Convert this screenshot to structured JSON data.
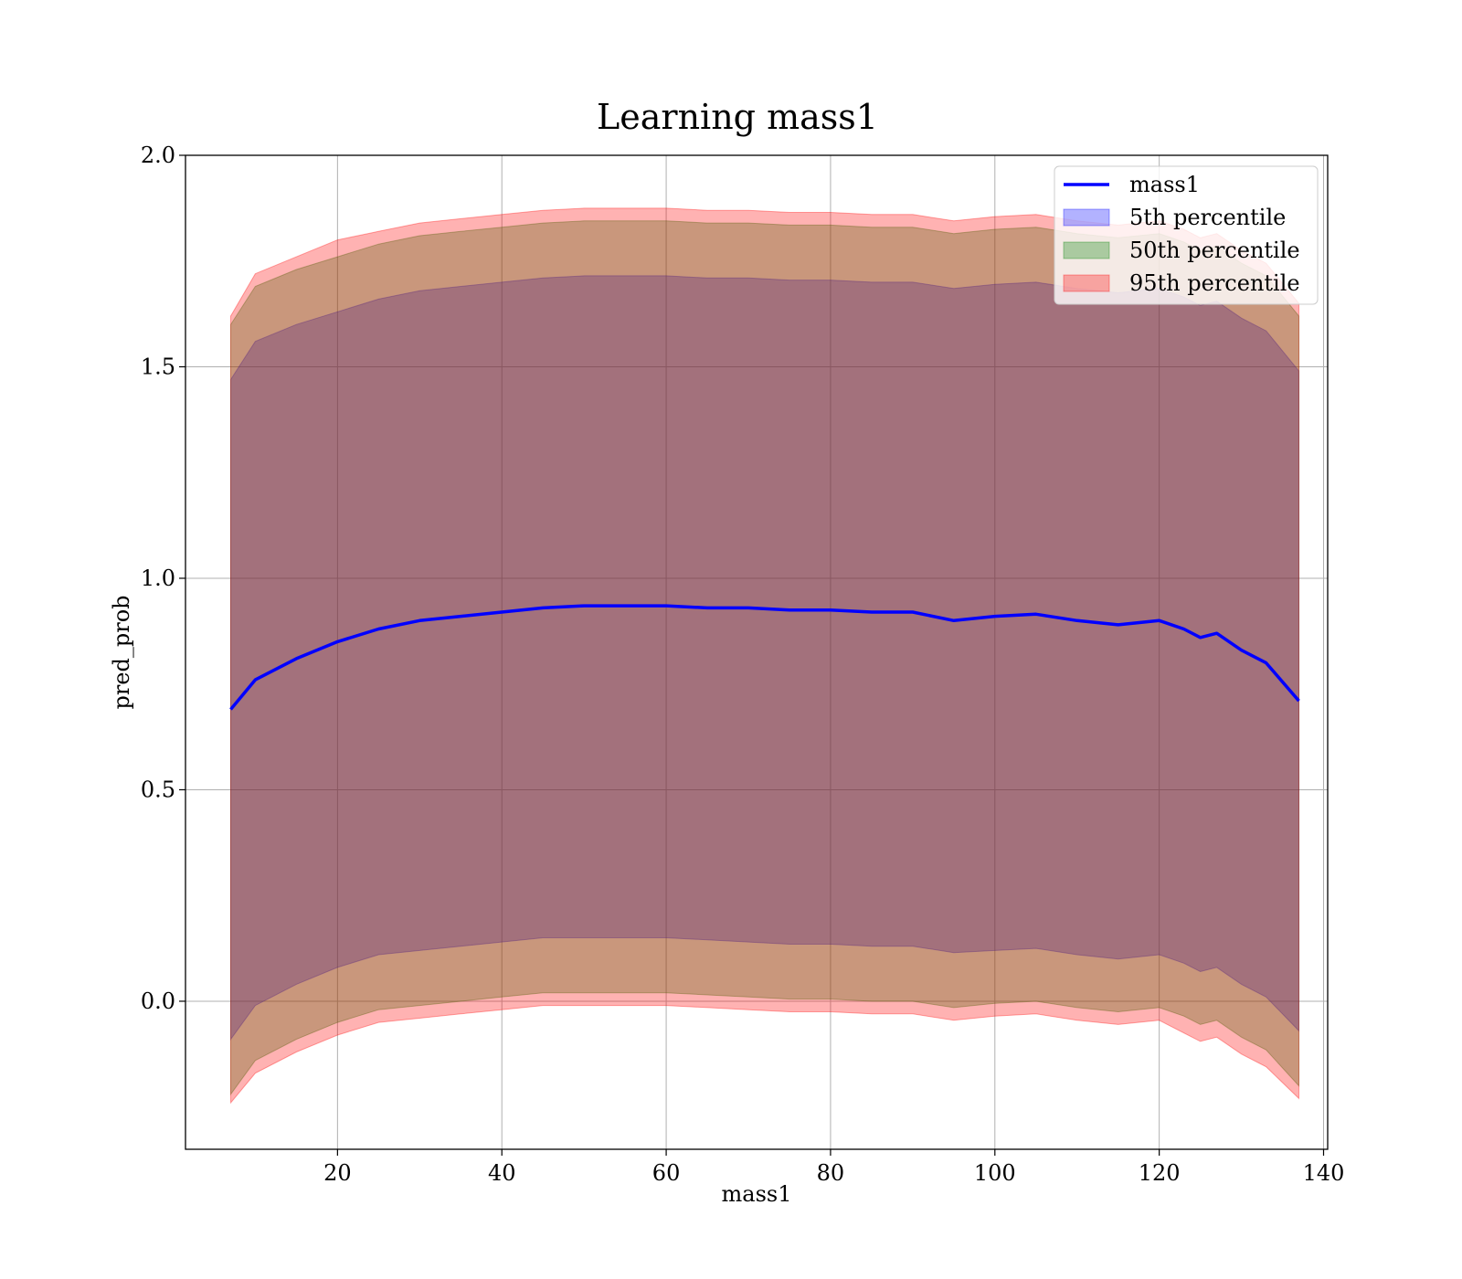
{
  "chart_data": {
    "type": "area",
    "title": "Learning mass1",
    "xlabel": "mass1",
    "ylabel": "pred_prob",
    "xlim": [
      1.5,
      140.5
    ],
    "ylim": [
      -0.35,
      2.0
    ],
    "xticks": [
      20,
      40,
      60,
      80,
      100,
      120,
      140
    ],
    "yticks": [
      0.0,
      0.5,
      1.0,
      1.5,
      2.0
    ],
    "xtick_labels": [
      "20",
      "40",
      "60",
      "80",
      "100",
      "120",
      "140"
    ],
    "ytick_labels": [
      "0.0",
      "0.5",
      "1.0",
      "1.5",
      "2.0"
    ],
    "grid": true,
    "legend_position": "top-right",
    "colors": {
      "line": "#0000ff",
      "band5": "#0000ff",
      "band50": "#008000",
      "band95": "#ff0000"
    },
    "x": [
      7,
      10,
      15,
      20,
      25,
      30,
      35,
      40,
      45,
      50,
      55,
      60,
      65,
      70,
      75,
      80,
      85,
      90,
      95,
      100,
      105,
      110,
      115,
      120,
      123,
      125,
      127,
      130,
      133,
      137
    ],
    "series": [
      {
        "name": "mass1",
        "kind": "line",
        "values": [
          0.69,
          0.76,
          0.81,
          0.85,
          0.88,
          0.9,
          0.91,
          0.92,
          0.93,
          0.935,
          0.935,
          0.935,
          0.93,
          0.93,
          0.925,
          0.925,
          0.92,
          0.92,
          0.9,
          0.91,
          0.915,
          0.9,
          0.89,
          0.9,
          0.88,
          0.86,
          0.87,
          0.83,
          0.8,
          0.71
        ]
      },
      {
        "name": "5th percentile",
        "kind": "band",
        "lower": [
          -0.09,
          -0.01,
          0.04,
          0.08,
          0.11,
          0.12,
          0.13,
          0.14,
          0.15,
          0.15,
          0.15,
          0.15,
          0.145,
          0.14,
          0.135,
          0.135,
          0.13,
          0.13,
          0.115,
          0.12,
          0.125,
          0.11,
          0.1,
          0.11,
          0.09,
          0.07,
          0.08,
          0.04,
          0.01,
          -0.07
        ],
        "upper": [
          1.47,
          1.56,
          1.6,
          1.63,
          1.66,
          1.68,
          1.69,
          1.7,
          1.71,
          1.715,
          1.715,
          1.715,
          1.71,
          1.71,
          1.705,
          1.705,
          1.7,
          1.7,
          1.685,
          1.695,
          1.7,
          1.685,
          1.675,
          1.685,
          1.665,
          1.645,
          1.655,
          1.615,
          1.585,
          1.49
        ]
      },
      {
        "name": "50th percentile",
        "kind": "band",
        "lower": [
          -0.22,
          -0.14,
          -0.09,
          -0.05,
          -0.02,
          -0.01,
          0.0,
          0.01,
          0.02,
          0.02,
          0.02,
          0.02,
          0.015,
          0.01,
          0.005,
          0.005,
          0.0,
          0.0,
          -0.015,
          -0.005,
          0.0,
          -0.015,
          -0.025,
          -0.015,
          -0.035,
          -0.055,
          -0.045,
          -0.085,
          -0.115,
          -0.2
        ],
        "upper": [
          1.6,
          1.69,
          1.73,
          1.76,
          1.79,
          1.81,
          1.82,
          1.83,
          1.84,
          1.845,
          1.845,
          1.845,
          1.84,
          1.84,
          1.835,
          1.835,
          1.83,
          1.83,
          1.815,
          1.825,
          1.83,
          1.815,
          1.805,
          1.815,
          1.795,
          1.775,
          1.785,
          1.745,
          1.715,
          1.62
        ]
      },
      {
        "name": "95th percentile",
        "kind": "band",
        "lower": [
          -0.24,
          -0.17,
          -0.12,
          -0.08,
          -0.05,
          -0.04,
          -0.03,
          -0.02,
          -0.01,
          -0.01,
          -0.01,
          -0.01,
          -0.015,
          -0.02,
          -0.025,
          -0.025,
          -0.03,
          -0.03,
          -0.045,
          -0.035,
          -0.03,
          -0.045,
          -0.055,
          -0.045,
          -0.075,
          -0.095,
          -0.085,
          -0.125,
          -0.155,
          -0.23
        ],
        "upper": [
          1.62,
          1.72,
          1.76,
          1.8,
          1.82,
          1.84,
          1.85,
          1.86,
          1.87,
          1.875,
          1.875,
          1.875,
          1.87,
          1.87,
          1.865,
          1.865,
          1.86,
          1.86,
          1.845,
          1.855,
          1.86,
          1.845,
          1.835,
          1.845,
          1.825,
          1.805,
          1.815,
          1.775,
          1.745,
          1.65
        ]
      }
    ]
  }
}
